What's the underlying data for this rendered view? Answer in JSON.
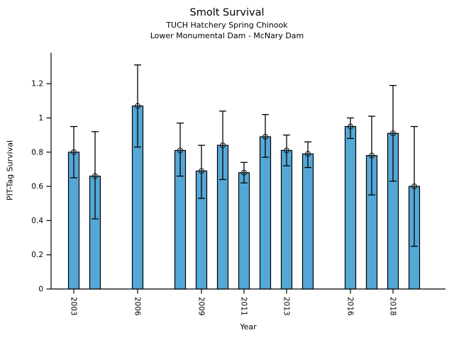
{
  "header": {
    "title": "Smolt Survival",
    "subtitle1": "TUCH Hatchery Spring Chinook",
    "subtitle2": "Lower Monumental Dam - McNary Dam"
  },
  "chart_data": {
    "type": "bar",
    "title": "Smolt Survival",
    "subtitle": [
      "TUCH Hatchery Spring Chinook",
      "Lower Monumental Dam - McNary Dam"
    ],
    "xlabel": "Year",
    "ylabel": "PIT-Tag Survival",
    "categories": [
      2003,
      2004,
      2006,
      2008,
      2009,
      2010,
      2011,
      2012,
      2013,
      2014,
      2016,
      2017,
      2018,
      2019
    ],
    "values": [
      0.8,
      0.66,
      1.07,
      0.81,
      0.69,
      0.84,
      0.68,
      0.89,
      0.81,
      0.79,
      0.95,
      0.78,
      0.91,
      0.6
    ],
    "error_low": [
      0.65,
      0.41,
      0.83,
      0.66,
      0.53,
      0.64,
      0.62,
      0.77,
      0.72,
      0.71,
      0.88,
      0.55,
      0.63,
      0.25
    ],
    "error_high": [
      0.95,
      0.92,
      1.31,
      0.97,
      0.84,
      1.04,
      0.74,
      1.02,
      0.9,
      0.86,
      1.0,
      1.01,
      1.19,
      0.95
    ],
    "ylim": [
      0,
      1.38
    ],
    "yticks": [
      0,
      0.2,
      0.4,
      0.6,
      0.8,
      1,
      1.2
    ],
    "ytick_labels": [
      "0",
      "0.2",
      "0.4",
      "0.6",
      "0.8",
      "1",
      "1.2"
    ],
    "xtick_years": [
      2003,
      2006,
      2009,
      2011,
      2013,
      2016,
      2018
    ],
    "grid": false,
    "legend": null,
    "bar_color": "#55a7d6",
    "edge_color": "#000000",
    "marker": "open-circle"
  }
}
